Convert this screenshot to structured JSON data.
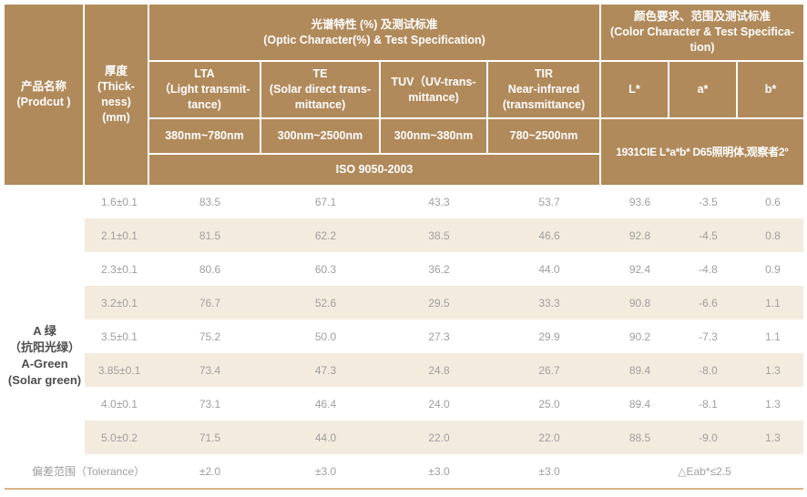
{
  "colors": {
    "header_bg": "#b18a5b",
    "stripe_bg": "#f4ebdf",
    "grid_line": "#ffffff",
    "text_light": "#9f9f9f",
    "text_dark": "#4d4d4d",
    "bottom_line": "#ddb487"
  },
  "header": {
    "product_label": "产品名称\n(Prodcut )",
    "thickness_label": "厚度\n(Thick-\nness)\n(mm)",
    "optic_group_label": "光谱特性 (%) 及测试标准\n(Optic Character(%) & Test Specification)",
    "color_group_label": "颜色要求、范围及测试标准\n(Color Character & Test Specifica-\ntion)",
    "optic_columns": [
      {
        "label": "LTA\n（Light transmit-\ntance)",
        "range": "380nm~780nm"
      },
      {
        "label": "TE\n(Solar direct trans-\nmittance)",
        "range": "300nm~2500nm"
      },
      {
        "label": "TUV（UV-trans-\nmittance)",
        "range": "300nm~380nm"
      },
      {
        "label": "TIR\nNear-infrared\n(transmittance)",
        "range": "780~2500nm"
      }
    ],
    "color_columns": [
      "L*",
      "a*",
      "b*"
    ],
    "iso_standard": "ISO 9050-2003",
    "cie_standard": "1931CIE L*a*b* D65照明体,观察者2°"
  },
  "body": {
    "product_name": "A 绿\n（抗阳光绿）\nA-Green\n(Solar green)",
    "rows": [
      {
        "thickness": "1.6±0.1",
        "values": [
          "83.5",
          "67.1",
          "43.3",
          "53.7",
          "93.6",
          "-3.5",
          "0.6"
        ]
      },
      {
        "thickness": "2.1±0.1",
        "values": [
          "81.5",
          "62.2",
          "38.5",
          "46.6",
          "92.8",
          "-4.5",
          "0.8"
        ]
      },
      {
        "thickness": "2.3±0.1",
        "values": [
          "80.6",
          "60.3",
          "36.2",
          "44.0",
          "92.4",
          "-4.8",
          "0.9"
        ]
      },
      {
        "thickness": "3.2±0.1",
        "values": [
          "76.7",
          "52.6",
          "29.5",
          "33.3",
          "90.8",
          "-6.6",
          "1.1"
        ]
      },
      {
        "thickness": "3.5±0.1",
        "values": [
          "75.2",
          "50.0",
          "27.3",
          "29.9",
          "90.2",
          "-7.3",
          "1.1"
        ]
      },
      {
        "thickness": "3.85±0.1",
        "values": [
          "73.4",
          "47.3",
          "24.8",
          "26.7",
          "89.4",
          "-8.0",
          "1.3"
        ]
      },
      {
        "thickness": "4.0±0.1",
        "values": [
          "73.1",
          "46.4",
          "24.0",
          "25.0",
          "89.4",
          "-8.1",
          "1.3"
        ]
      },
      {
        "thickness": "5.0±0.2",
        "values": [
          "71.5",
          "44.0",
          "22.0",
          "22.0",
          "88.5",
          "-9.0",
          "1.3"
        ]
      }
    ],
    "tolerance": {
      "label": "偏差范围（Tolerance）",
      "values": [
        "±2.0",
        "±3.0",
        "±3.0",
        "±3.0"
      ],
      "color_value": "△Eab*≤2.5"
    }
  }
}
